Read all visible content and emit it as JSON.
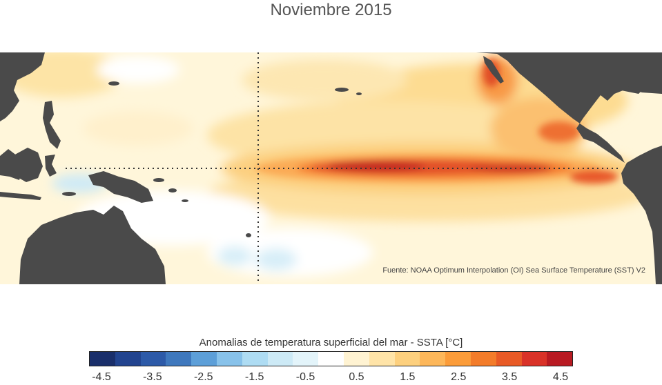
{
  "title": "Noviembre 2015",
  "map": {
    "source_note": "Fuente: NOAA Optimum Interpolation (OI) Sea Surface Temperature (SST) V2",
    "land_color": "#4a4a4a",
    "ocean_base_color": "#fff7dc",
    "reference_lines": [
      "equator",
      "dateline"
    ]
  },
  "colorbar": {
    "title": "Anomalias de temperatura superficial del mar - SSTA  [°C]",
    "colors": [
      "#1a2f6b",
      "#22448f",
      "#2d5aa8",
      "#3f78bd",
      "#5d9fd8",
      "#88c2ea",
      "#aedcf3",
      "#cdeaf6",
      "#e3f4fa",
      "#ffffff",
      "#fff3d2",
      "#ffe4a8",
      "#fdd07e",
      "#fdb75a",
      "#fb9c3a",
      "#f37c2a",
      "#e85a26",
      "#d93228",
      "#b81a22"
    ],
    "tick_labels": [
      "-4.5",
      "-3.5",
      "-2.5",
      "-1.5",
      "-0.5",
      "0.5",
      "1.5",
      "2.5",
      "3.5",
      "4.5"
    ]
  }
}
